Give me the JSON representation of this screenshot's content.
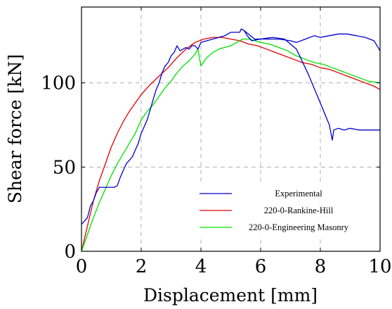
{
  "chart_data": {
    "type": "line",
    "title": "",
    "xlabel": "Displacement [mm]",
    "ylabel": "Shear force [kN]",
    "xlim": [
      0,
      10
    ],
    "ylim": [
      0,
      145
    ],
    "xticks": [
      0,
      2,
      4,
      6,
      8,
      10
    ],
    "yticks": [
      0,
      50,
      100
    ],
    "grid": true,
    "legend_position": "lower-right",
    "series": [
      {
        "name": "Experimental",
        "color": "#0000cc",
        "x": [
          0,
          0.1,
          0.2,
          0.3,
          0.4,
          0.5,
          0.6,
          0.7,
          0.8,
          1.0,
          1.1,
          1.2,
          1.3,
          1.4,
          1.5,
          1.6,
          1.7,
          1.8,
          1.9,
          2.0,
          2.1,
          2.2,
          2.3,
          2.4,
          2.5,
          2.6,
          2.7,
          2.8,
          2.9,
          3.0,
          3.1,
          3.2,
          3.3,
          3.4,
          3.5,
          3.6,
          3.7,
          3.8,
          3.9,
          4.0,
          4.2,
          4.4,
          4.6,
          4.8,
          5.0,
          5.3,
          5.35,
          5.45,
          5.55,
          5.6,
          5.7,
          6.0,
          6.4,
          6.8,
          7.2,
          7.6,
          8.0,
          8.3,
          8.4,
          8.45,
          8.6,
          8.8,
          9.0,
          9.3,
          9.6,
          10.0
        ],
        "y": [
          16,
          18,
          20,
          27,
          30,
          35,
          38,
          38,
          38,
          38,
          38,
          39,
          44,
          48,
          52,
          54,
          56,
          60,
          64,
          70,
          74,
          78,
          84,
          90,
          96,
          100,
          106,
          110,
          112,
          116,
          118,
          122,
          119,
          120,
          121,
          120,
          122,
          122,
          120,
          124,
          125,
          126,
          127,
          128,
          130,
          130,
          132,
          131,
          128,
          127,
          125,
          126,
          127,
          126,
          120,
          105,
          88,
          75,
          66,
          72,
          73,
          72,
          73,
          72,
          72,
          72
        ]
      },
      {
        "name": "Experimental",
        "color": "#0000cc",
        "x": [
          5.45,
          5.8,
          6.2,
          6.6,
          7.0,
          7.2,
          7.5,
          7.8,
          8.0,
          8.3,
          8.6,
          8.9,
          9.2,
          9.5,
          9.8,
          10.0
        ],
        "y": [
          131,
          126,
          126,
          126,
          125,
          124,
          126,
          128,
          127,
          128,
          129,
          129,
          128,
          127,
          125,
          119
        ]
      },
      {
        "name": "220-0-Rankine-Hill",
        "color": "#e00000",
        "x": [
          0,
          0.2,
          0.4,
          0.6,
          0.8,
          1.0,
          1.2,
          1.4,
          1.6,
          1.8,
          2.0,
          2.3,
          2.6,
          2.9,
          3.2,
          3.5,
          3.8,
          4.1,
          4.4,
          4.7,
          5.0,
          5.3,
          5.6,
          5.9,
          6.2,
          6.5,
          6.8,
          7.1,
          7.4,
          7.7,
          8.0,
          8.3,
          8.6,
          8.9,
          9.2,
          9.5,
          9.8,
          10.0
        ],
        "y": [
          0,
          15,
          30,
          42,
          52,
          62,
          70,
          77,
          83,
          88,
          93,
          99,
          104,
          109,
          115,
          120,
          124,
          126,
          127,
          127,
          126,
          125,
          123,
          122,
          120,
          118,
          116,
          114,
          112,
          111,
          109,
          108,
          106,
          104,
          102,
          100,
          98,
          96
        ]
      },
      {
        "name": "220-0-Engineering Masonry",
        "color": "#00e000",
        "x": [
          0,
          0.2,
          0.4,
          0.6,
          0.8,
          1.0,
          1.2,
          1.4,
          1.6,
          1.8,
          2.0,
          2.2,
          2.4,
          2.6,
          2.8,
          3.0,
          3.2,
          3.4,
          3.6,
          3.8,
          3.9,
          4.0,
          4.2,
          4.4,
          4.6,
          4.8,
          5.0,
          5.2,
          5.4,
          5.6,
          5.8,
          6.0,
          6.3,
          6.6,
          6.9,
          7.2,
          7.5,
          7.8,
          8.1,
          8.4,
          8.7,
          9.0,
          9.3,
          9.6,
          10.0
        ],
        "y": [
          0,
          10,
          20,
          29,
          37,
          45,
          52,
          58,
          64,
          70,
          78,
          83,
          87,
          92,
          97,
          101,
          106,
          110,
          113,
          117,
          120,
          110,
          115,
          118,
          120,
          121,
          122,
          124,
          126,
          126,
          125,
          124,
          123,
          121,
          119,
          116,
          114,
          112,
          111,
          109,
          107,
          105,
          103,
          101,
          100
        ]
      }
    ],
    "legend": [
      {
        "label": "Experimental",
        "color": "#0000cc"
      },
      {
        "label": "220-0-Rankine-Hill",
        "color": "#e00000"
      },
      {
        "label": "220-0-Engineering Masonry",
        "color": "#00e000"
      }
    ]
  }
}
